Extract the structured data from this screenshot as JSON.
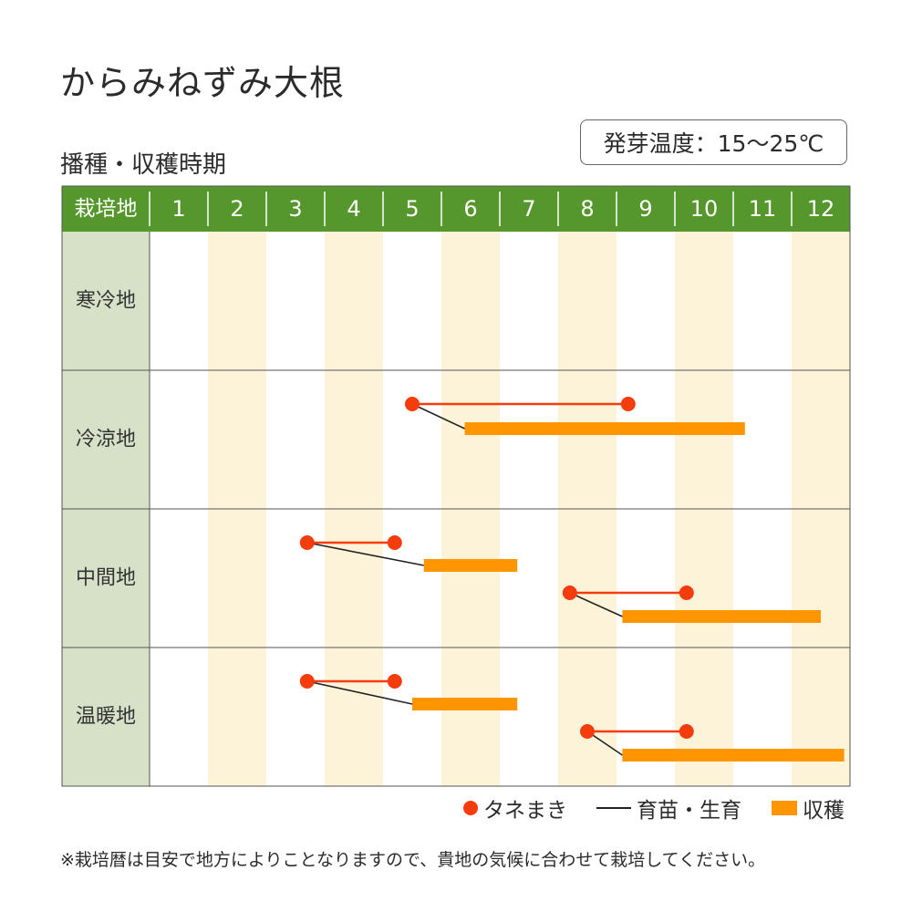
{
  "title": "からみねずみ大根",
  "subtitle": "播種・収穫時期",
  "germination_temp": "発芽温度：15〜25℃",
  "colors": {
    "header": "#55962d",
    "row_label_bg": "#d6e1c8",
    "stripe": "#fdf3d9",
    "sowing": "#f53c0c",
    "seedling": "#222222",
    "harvest": "#ff9500"
  },
  "legend": [
    {
      "label": "タネまき",
      "icon": "red-dot-icon"
    },
    {
      "label": "育苗・生育",
      "icon": "black-line-icon"
    },
    {
      "label": "収穫",
      "icon": "orange-bar-icon"
    }
  ],
  "note": "※栽培暦は目安で地方によりことなりますので、貴地の気候に合わせて栽培してください。",
  "chart_data": {
    "type": "gantt",
    "header_label": "栽培地",
    "months": [
      "1",
      "2",
      "3",
      "4",
      "5",
      "6",
      "7",
      "8",
      "9",
      "10",
      "11",
      "12"
    ],
    "rows": [
      {
        "label": "寒冷地",
        "schedules": []
      },
      {
        "label": "冷涼地",
        "schedules": [
          {
            "sowing": [
              5.5,
              9.2
            ],
            "harvest": [
              6.4,
              11.2
            ]
          }
        ]
      },
      {
        "label": "中間地",
        "schedules": [
          {
            "sowing": [
              3.7,
              5.2
            ],
            "harvest": [
              5.7,
              7.3
            ]
          },
          {
            "sowing": [
              8.2,
              10.2
            ],
            "harvest": [
              9.1,
              12.5
            ]
          }
        ]
      },
      {
        "label": "温暖地",
        "schedules": [
          {
            "sowing": [
              3.7,
              5.2
            ],
            "harvest": [
              5.5,
              7.3
            ]
          },
          {
            "sowing": [
              8.5,
              10.2
            ],
            "harvest": [
              9.1,
              12.9
            ]
          }
        ]
      }
    ]
  }
}
